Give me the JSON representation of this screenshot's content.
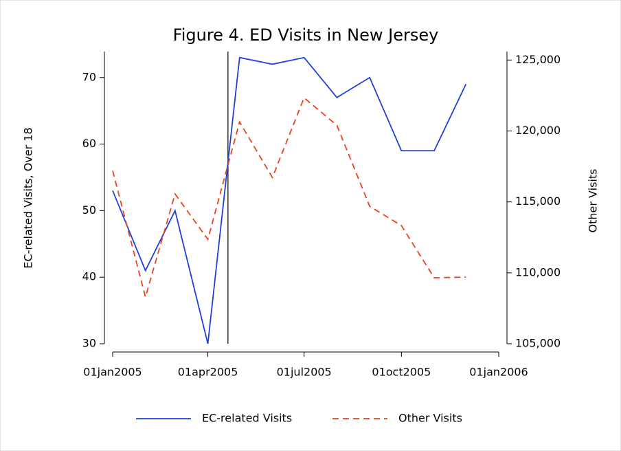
{
  "chart_data": {
    "type": "line",
    "title": "Figure 4. ED Visits in New Jersey",
    "x": [
      "01jan2005",
      "01feb2005",
      "01mar2005",
      "01apr2005",
      "01may2005",
      "01jun2005",
      "01jul2005",
      "01aug2005",
      "01sep2005",
      "01oct2005",
      "01nov2005",
      "01dec2005"
    ],
    "series": [
      {
        "name": "EC-related Visits",
        "color": "#1f3fd8",
        "dash": "solid",
        "values": [
          53,
          41,
          50,
          30,
          73,
          72,
          73,
          67,
          70,
          59,
          59,
          69
        ]
      },
      {
        "name": "Other Visits",
        "color": "#e8431c",
        "dash": "dashed",
        "axis": "y2",
        "values": [
          117200,
          108300,
          115560,
          112360,
          120640,
          116720,
          122340,
          120400,
          114690,
          113330,
          109650,
          109700
        ]
      }
    ],
    "y_label": "EC-related Visits, Over 18",
    "y2_label": "Other Visits",
    "xlim": [
      "01jan2005",
      "01jan2006"
    ],
    "xticks": [
      "01jan2005",
      "01apr2005",
      "01jul2005",
      "01oct2005",
      "01jan2006"
    ],
    "ylim": [
      30,
      73.9
    ],
    "yticks": [
      30,
      40,
      50,
      60,
      70
    ],
    "y2lim": [
      105000,
      125600
    ],
    "y2ticks": [
      {
        "value": 105000,
        "label": "105,000"
      },
      {
        "value": 110000,
        "label": "110,000"
      },
      {
        "value": 115000,
        "label": "115,000"
      },
      {
        "value": 120000,
        "label": "120,000"
      },
      {
        "value": 125000,
        "label": "125,000"
      }
    ],
    "reference_line_x": "20apr2005",
    "legend": "bottom"
  }
}
